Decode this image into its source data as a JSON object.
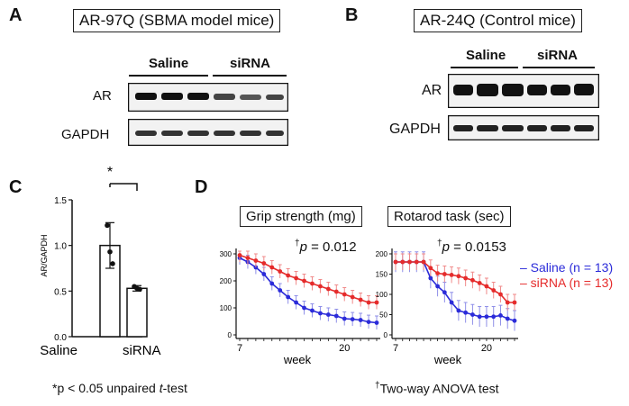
{
  "panels": {
    "a": {
      "letter": "A",
      "title": "AR-97Q (SBMA model mice)",
      "groups": [
        "Saline",
        "siRNA"
      ],
      "rows": [
        "AR",
        "GAPDH"
      ]
    },
    "b": {
      "letter": "B",
      "title": "AR-24Q (Control mice)",
      "groups": [
        "Saline",
        "siRNA"
      ],
      "rows": [
        "AR",
        "GAPDH"
      ]
    },
    "c": {
      "letter": "C",
      "ylabel": "AR/GAPDH",
      "yticks": [
        "0.0",
        "0.5",
        "1.0",
        "1.5"
      ],
      "categories": [
        "Saline",
        "siRNA"
      ],
      "significance": "*",
      "footnote": "*p < 0.05 unpaired ",
      "footnote_italic": "t",
      "footnote_end": "-test"
    },
    "d": {
      "letter": "D",
      "grip_title": "Grip strength (mg)",
      "rota_title": "Rotarod task (sec)",
      "grip_p_dagger": "†",
      "grip_p_var": "p",
      "grip_p_value": " = 0.012",
      "rota_p_dagger": "†",
      "rota_p_var": "p",
      "rota_p_value": " = 0.0153",
      "xlabel": "week",
      "grip_yticks": [
        "0",
        "100",
        "200",
        "300"
      ],
      "rota_yticks": [
        "0",
        "50",
        "100",
        "150",
        "200"
      ],
      "xticks": [
        "7",
        "20"
      ],
      "legend_saline": "– Saline (n = 13)",
      "legend_sirna": "– siRNA (n = 13)",
      "footnote_dagger": "†",
      "footnote": "Two-way ANOVA test"
    }
  },
  "colors": {
    "saline": "#2b2bd9",
    "sirna": "#e52b2b"
  },
  "chart_data": [
    {
      "type": "bar",
      "title": "",
      "ylabel": "AR/GAPDH",
      "categories": [
        "Saline",
        "siRNA"
      ],
      "values": [
        1.0,
        0.53
      ],
      "errors": [
        0.25,
        0.03
      ],
      "points": [
        [
          1.22,
          0.93,
          0.8
        ],
        [
          0.55,
          0.53,
          0.52
        ]
      ],
      "ylim": [
        0,
        1.5
      ]
    },
    {
      "type": "line",
      "title": "Grip strength (mg)",
      "xlabel": "week",
      "ylim": [
        0,
        300
      ],
      "x": [
        7,
        8,
        9,
        10,
        11,
        12,
        13,
        14,
        15,
        16,
        17,
        18,
        19,
        20,
        21,
        22,
        23,
        24
      ],
      "series": [
        {
          "name": "Saline (n = 13)",
          "values": [
            285,
            270,
            250,
            225,
            190,
            165,
            140,
            120,
            100,
            90,
            80,
            75,
            70,
            60,
            58,
            55,
            48,
            45
          ],
          "error": 25
        },
        {
          "name": "siRNA (n = 13)",
          "values": [
            295,
            285,
            275,
            265,
            250,
            235,
            220,
            210,
            200,
            190,
            180,
            170,
            160,
            150,
            140,
            130,
            120,
            120
          ],
          "error": 25
        }
      ]
    },
    {
      "type": "line",
      "title": "Rotarod task (sec)",
      "xlabel": "week",
      "ylim": [
        0,
        200
      ],
      "x": [
        7,
        8,
        9,
        10,
        11,
        12,
        13,
        14,
        15,
        16,
        17,
        18,
        19,
        20,
        21,
        22,
        23,
        24
      ],
      "series": [
        {
          "name": "Saline (n = 13)",
          "values": [
            180,
            180,
            180,
            180,
            180,
            140,
            120,
            105,
            80,
            60,
            55,
            50,
            45,
            45,
            45,
            48,
            40,
            35
          ],
          "error": 25
        },
        {
          "name": "siRNA (n = 13)",
          "values": [
            180,
            180,
            180,
            180,
            180,
            165,
            152,
            150,
            148,
            145,
            140,
            135,
            128,
            120,
            110,
            100,
            80,
            80
          ],
          "error": 20
        }
      ]
    }
  ]
}
